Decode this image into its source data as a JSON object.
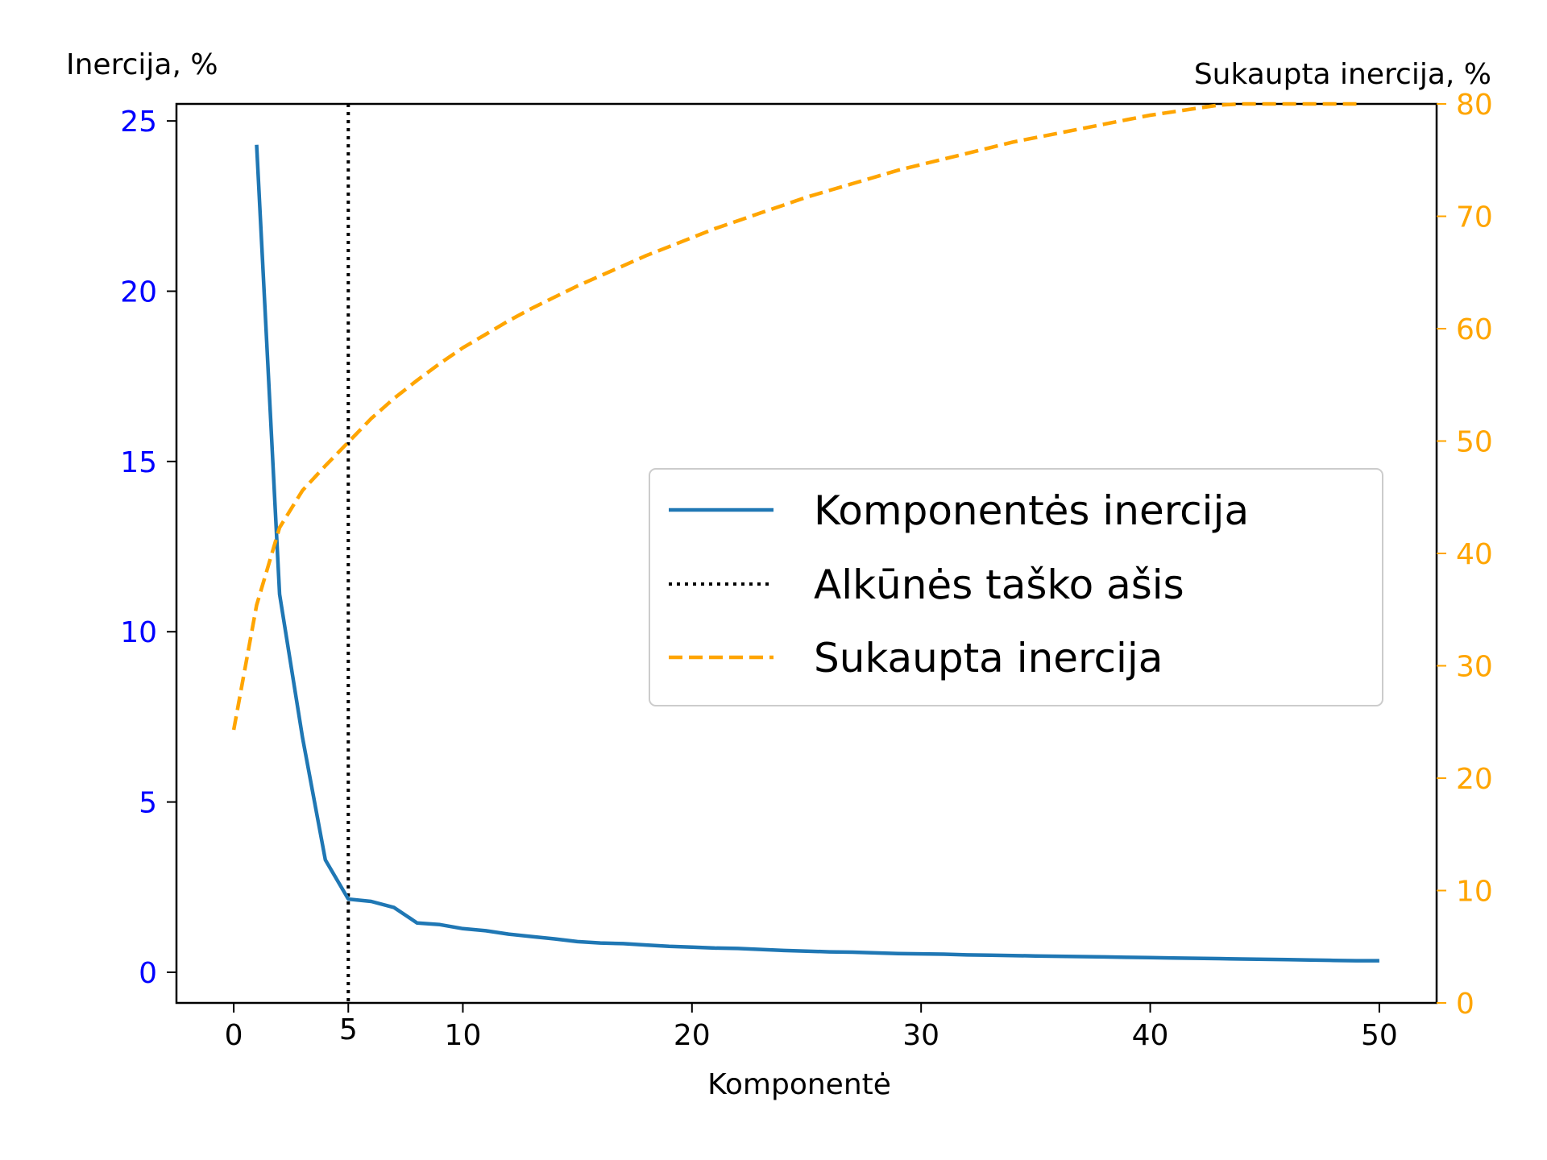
{
  "chart_data": {
    "type": "line",
    "xlabel": "Komponentė",
    "ylabel_left": "Inercija, %",
    "ylabel_right": "Sukaupta inercija, %",
    "xlim": [
      -2.5,
      52.5
    ],
    "ylim_left": [
      -0.9,
      25.5
    ],
    "ylim_right": [
      0,
      80
    ],
    "xticks": [
      0,
      10,
      20,
      30,
      40,
      50
    ],
    "yticks_left": [
      0,
      5,
      10,
      15,
      20,
      25
    ],
    "yticks_right": [
      0,
      10,
      20,
      30,
      40,
      50,
      60,
      70,
      80
    ],
    "elbow_x": 5,
    "elbow_label": "5",
    "colors": {
      "component": "#1f77b4",
      "cumulative": "#ffa500",
      "elbow": "#000000",
      "left_ticks": "#0000ff",
      "right_ticks": "#ffa500"
    },
    "series": [
      {
        "name": "Komponentės inercija",
        "axis": "left",
        "style": "solid",
        "x": [
          1,
          2,
          3,
          4,
          5,
          6,
          7,
          8,
          9,
          10,
          11,
          12,
          13,
          14,
          15,
          16,
          17,
          18,
          19,
          20,
          21,
          22,
          23,
          24,
          25,
          26,
          27,
          28,
          29,
          30,
          31,
          32,
          33,
          34,
          35,
          36,
          37,
          38,
          39,
          40,
          41,
          42,
          43,
          44,
          45,
          46,
          47,
          48,
          49,
          50
        ],
        "values": [
          24.3,
          11.1,
          6.9,
          3.3,
          2.15,
          2.08,
          1.9,
          1.45,
          1.4,
          1.28,
          1.22,
          1.12,
          1.05,
          0.98,
          0.9,
          0.86,
          0.84,
          0.8,
          0.76,
          0.74,
          0.71,
          0.7,
          0.67,
          0.64,
          0.62,
          0.6,
          0.59,
          0.57,
          0.55,
          0.54,
          0.53,
          0.51,
          0.5,
          0.49,
          0.48,
          0.47,
          0.46,
          0.45,
          0.44,
          0.43,
          0.42,
          0.41,
          0.4,
          0.39,
          0.38,
          0.37,
          0.36,
          0.35,
          0.34,
          0.34
        ]
      },
      {
        "name": "Sukaupta inercija",
        "axis": "right",
        "style": "dashed",
        "x": [
          0,
          1,
          2,
          3,
          4,
          5,
          6,
          7,
          8,
          9,
          10,
          11,
          12,
          13,
          14,
          15,
          16,
          17,
          18,
          19,
          20,
          21,
          22,
          23,
          24,
          25,
          26,
          27,
          28,
          29,
          30,
          31,
          32,
          33,
          34,
          35,
          36,
          37,
          38,
          39,
          40,
          41,
          42,
          43,
          44,
          45,
          46,
          47,
          48,
          49
        ],
        "values": [
          24.3,
          35.4,
          42.3,
          45.6,
          47.8,
          49.9,
          52.0,
          53.8,
          55.4,
          56.9,
          58.3,
          59.5,
          60.7,
          61.8,
          62.8,
          63.8,
          64.7,
          65.6,
          66.5,
          67.3,
          68.1,
          68.9,
          69.6,
          70.3,
          71.0,
          71.7,
          72.3,
          72.9,
          73.5,
          74.1,
          74.6,
          75.1,
          75.6,
          76.1,
          76.6,
          77.0,
          77.4,
          77.8,
          78.2,
          78.6,
          79.0,
          79.3,
          79.6,
          79.9,
          80.2,
          80.4,
          80.6,
          80.8,
          80.9,
          81.0
        ]
      }
    ],
    "legend": {
      "placement": "center-right",
      "entries": [
        "Komponentės inercija",
        "Alkūnės taško ašis",
        "Sukaupta inercija"
      ]
    }
  }
}
